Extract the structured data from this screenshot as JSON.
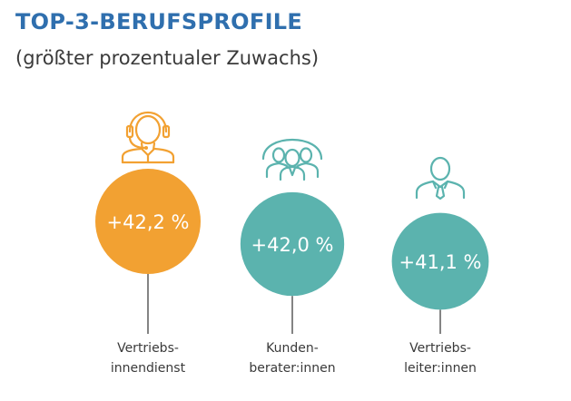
{
  "header": {
    "title": "TOP-3-BERUFSPROFILE",
    "subtitle": "(größter prozentualer Zuwachs)"
  },
  "chart_data": {
    "type": "bubble",
    "title": "TOP-3-BERUFSPROFILE",
    "subtitle": "(größter prozentualer Zuwachs)",
    "unit": "%",
    "categories": [
      [
        "Vertriebs-",
        "innendienst"
      ],
      [
        "Kunden-",
        "berater:innen"
      ],
      [
        "Vertriebs-",
        "leiter:innen"
      ]
    ],
    "values": [
      42.2,
      42.0,
      41.1
    ],
    "value_labels": [
      "+42,2 %",
      "+42,0 %",
      "+41,1 %"
    ],
    "icons": [
      "headset-agent-icon",
      "customer-group-icon",
      "manager-tie-icon"
    ],
    "colors": [
      "#f2a132",
      "#5bb3ae",
      "#5bb3ae"
    ]
  },
  "colors": {
    "title": "#2f6fae",
    "orange": "#f2a132",
    "teal": "#5bb3ae",
    "line": "#333333",
    "text": "#3a3a3a"
  }
}
